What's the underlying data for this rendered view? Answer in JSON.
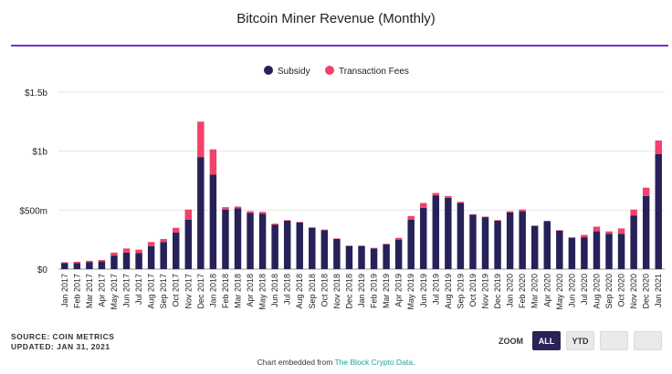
{
  "title": "Bitcoin Miner Revenue (Monthly)",
  "colors": {
    "subsidy": "#262158",
    "fees": "#f2416b",
    "accent": "#7b2fc9",
    "link": "#1ba39c"
  },
  "source": {
    "line1": "SOURCE: COIN METRICS",
    "line2": "UPDATED: JAN 31, 2021"
  },
  "zoom": {
    "label": "ZOOM",
    "buttons": [
      "ALL",
      "YTD",
      "",
      ""
    ]
  },
  "embed": {
    "text": "Chart embedded from ",
    "link": "The Block Crypto Data",
    "suffix": "."
  },
  "chart_data": {
    "type": "bar",
    "stacked": true,
    "title": "Bitcoin Miner Revenue (Monthly)",
    "legend": {
      "position": "top-center"
    },
    "y_ticks": [
      {
        "value": 0,
        "label": "$0"
      },
      {
        "value": 500,
        "label": "$500m"
      },
      {
        "value": 1000,
        "label": "$1b"
      },
      {
        "value": 1500,
        "label": "$1.5b"
      }
    ],
    "ylim": [
      0,
      1500
    ],
    "units": "USD millions",
    "categories": [
      "Jan 2017",
      "Feb 2017",
      "Mar 2017",
      "Apr 2017",
      "May 2017",
      "Jun 2017",
      "Jul 2017",
      "Aug 2017",
      "Sep 2017",
      "Oct 2017",
      "Nov 2017",
      "Dec 2017",
      "Jan 2018",
      "Feb 2018",
      "Mar 2018",
      "Apr 2018",
      "May 2018",
      "Jun 2018",
      "Jul 2018",
      "Aug 2018",
      "Sep 2018",
      "Oct 2018",
      "Nov 2018",
      "Dec 2018",
      "Jan 2019",
      "Feb 2019",
      "Mar 2019",
      "Apr 2019",
      "May 2019",
      "Jun 2019",
      "Jul 2019",
      "Aug 2019",
      "Sep 2019",
      "Oct 2019",
      "Nov 2019",
      "Dec 2019",
      "Jan 2020",
      "Feb 2020",
      "Mar 2020",
      "Apr 2020",
      "May 2020",
      "Jun 2020",
      "Jul 2020",
      "Aug 2020",
      "Sep 2020",
      "Oct 2020",
      "Nov 2020",
      "Dec 2020",
      "Jan 2021"
    ],
    "series": [
      {
        "name": "Subsidy",
        "color": "#262158",
        "values": [
          50,
          52,
          58,
          65,
          115,
          140,
          135,
          195,
          230,
          310,
          420,
          950,
          800,
          505,
          515,
          475,
          470,
          375,
          410,
          395,
          350,
          330,
          255,
          195,
          195,
          175,
          210,
          250,
          420,
          520,
          625,
          605,
          560,
          460,
          440,
          410,
          480,
          490,
          365,
          405,
          325,
          265,
          270,
          320,
          300,
          300,
          455,
          620,
          975
        ]
      },
      {
        "name": "Transaction Fees",
        "color": "#f2416b",
        "values": [
          8,
          10,
          12,
          12,
          25,
          35,
          30,
          35,
          25,
          40,
          85,
          300,
          215,
          20,
          15,
          15,
          15,
          10,
          5,
          5,
          5,
          5,
          5,
          5,
          5,
          5,
          5,
          15,
          30,
          40,
          20,
          15,
          10,
          5,
          5,
          5,
          10,
          15,
          5,
          5,
          5,
          5,
          20,
          40,
          20,
          45,
          50,
          70,
          115
        ]
      }
    ]
  }
}
